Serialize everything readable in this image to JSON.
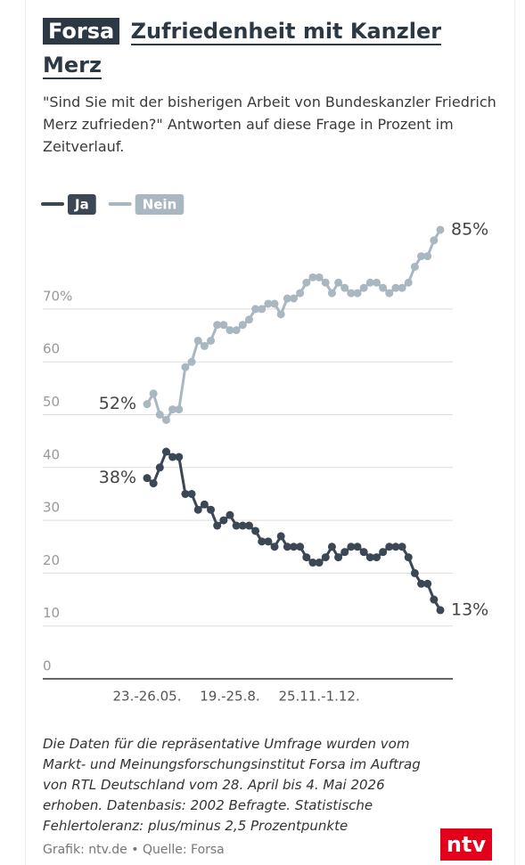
{
  "chart_data": {
    "type": "line",
    "badge": "Forsa",
    "title": "Zufriedenheit mit Kanzler Merz",
    "subtitle": "\"Sind Sie mit der bisherigen Arbeit von Bundeskanzler Friedrich Merz zufrieden?\" Antworten auf diese Frage in Prozent im Zeitverlauf.",
    "categories": [
      "23.-26.05.",
      null,
      null,
      null,
      null,
      null,
      null,
      null,
      null,
      null,
      null,
      null,
      null,
      "19.-25.8.",
      null,
      null,
      null,
      null,
      null,
      null,
      null,
      null,
      null,
      null,
      null,
      null,
      null,
      "25.11.-1.12.",
      null,
      null,
      null,
      null,
      null,
      null,
      null,
      null,
      null,
      null,
      null,
      null,
      null,
      null,
      null,
      null,
      null,
      null,
      null
    ],
    "series": [
      {
        "name": "Ja",
        "color": "#3b4754",
        "values": [
          38,
          37,
          40,
          43,
          42,
          42,
          35,
          35,
          32,
          33,
          32,
          29,
          30,
          31,
          29,
          29,
          29,
          28,
          26,
          26,
          25,
          27,
          25,
          25,
          25,
          23,
          22,
          22,
          23,
          25,
          23,
          24,
          25,
          25,
          24,
          23,
          23,
          24,
          25,
          25,
          25,
          23,
          20,
          18,
          18,
          15,
          13
        ],
        "value_labels": [
          "38%",
          null,
          null,
          null,
          null,
          null,
          null,
          null,
          null,
          null,
          null,
          null,
          null,
          null,
          null,
          null,
          null,
          null,
          null,
          null,
          null,
          null,
          null,
          null,
          null,
          null,
          null,
          null,
          null,
          null,
          null,
          null,
          null,
          null,
          null,
          null,
          null,
          null,
          null,
          null,
          null,
          null,
          null,
          null,
          null,
          null,
          "13%"
        ]
      },
      {
        "name": "Nein",
        "color": "#a9b7c0",
        "values": [
          52,
          54,
          50,
          49,
          51,
          51,
          59,
          60,
          64,
          63,
          64,
          67,
          67,
          66,
          66,
          67,
          68,
          70,
          70,
          71,
          71,
          69,
          72,
          72,
          73,
          75,
          76,
          76,
          75,
          73,
          75,
          74,
          73,
          73,
          74,
          75,
          75,
          74,
          73,
          74,
          74,
          75,
          78,
          80,
          80,
          83,
          85
        ],
        "value_labels": [
          "52%",
          null,
          null,
          null,
          null,
          null,
          null,
          null,
          null,
          null,
          null,
          null,
          null,
          null,
          null,
          null,
          null,
          null,
          null,
          null,
          null,
          null,
          null,
          null,
          null,
          null,
          null,
          null,
          null,
          null,
          null,
          null,
          null,
          null,
          null,
          null,
          null,
          null,
          null,
          null,
          null,
          null,
          null,
          null,
          null,
          null,
          "85%"
        ]
      }
    ],
    "ylim": [
      0,
      86
    ],
    "yticks": [
      0,
      10,
      20,
      30,
      40,
      50,
      60,
      {
        "value": 70,
        "label": "70%"
      }
    ],
    "grid": true,
    "note": "Die Daten für die repräsentative Umfrage wurden vom Markt- und Meinungsforschungsinstitut Forsa im Auftrag von RTL Deutschland vom 28. April bis 4. Mai 2026 erhoben. Datenbasis: 2002 Befragte. Statistische Fehlertoleranz: plus/minus 2,5 Prozentpunkte",
    "source": "Grafik: ntv.de • Quelle: Forsa",
    "logo": "ntv"
  }
}
